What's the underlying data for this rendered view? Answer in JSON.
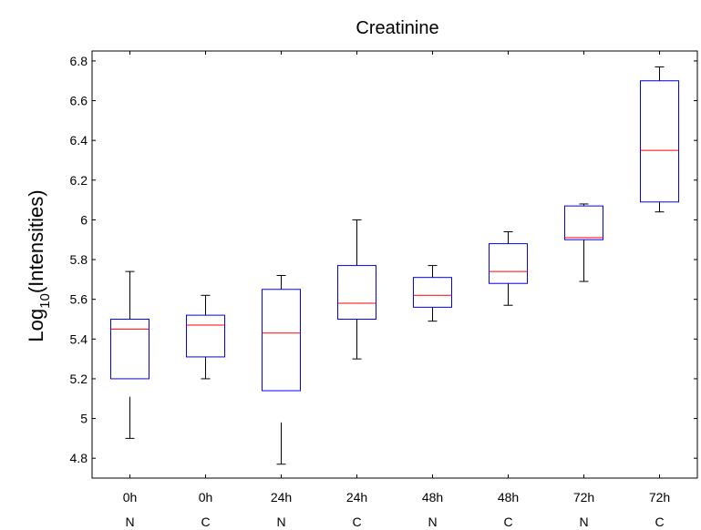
{
  "chart_data": {
    "type": "box",
    "title": "Creatinine",
    "ylabel": {
      "base": "Log",
      "subscript": "10",
      "rest": "(Intensities)"
    },
    "xlabel": "",
    "ylim": [
      4.7,
      6.85
    ],
    "yticks": [
      4.8,
      5,
      5.2,
      5.4,
      5.6,
      5.8,
      6,
      6.2,
      6.4,
      6.6,
      6.8
    ],
    "ytick_labels": [
      "4.8",
      "5",
      "5.2",
      "5.4",
      "5.6",
      "5.8",
      "6",
      "6.2",
      "6.4",
      "6.6",
      "6.8"
    ],
    "grid": false,
    "colors": {
      "box": "#0000ff",
      "median": "#ff0000",
      "whisker": "#000000"
    },
    "categories": [
      {
        "line1": "0h",
        "line2": "N"
      },
      {
        "line1": "0h",
        "line2": "C"
      },
      {
        "line1": "24h",
        "line2": "N"
      },
      {
        "line1": "24h",
        "line2": "C"
      },
      {
        "line1": "48h",
        "line2": "N"
      },
      {
        "line1": "48h",
        "line2": "C"
      },
      {
        "line1": "72h",
        "line2": "N"
      },
      {
        "line1": "72h",
        "line2": "C"
      }
    ],
    "boxes": [
      {
        "min": 4.9,
        "q1": 5.2,
        "median": 5.45,
        "q3": 5.5,
        "max": 5.74,
        "lower_whisker_top": 5.11
      },
      {
        "min": 5.2,
        "q1": 5.31,
        "median": 5.47,
        "q3": 5.52,
        "max": 5.62
      },
      {
        "min": 4.77,
        "q1": 5.14,
        "median": 5.43,
        "q3": 5.65,
        "max": 5.72,
        "lower_whisker_top": 4.98
      },
      {
        "min": 5.3,
        "q1": 5.5,
        "median": 5.58,
        "q3": 5.77,
        "max": 6.0
      },
      {
        "min": 5.49,
        "q1": 5.56,
        "median": 5.62,
        "q3": 5.71,
        "max": 5.77
      },
      {
        "min": 5.57,
        "q1": 5.68,
        "median": 5.74,
        "q3": 5.88,
        "max": 5.94
      },
      {
        "min": 5.69,
        "q1": 5.9,
        "median": 5.91,
        "q3": 6.07,
        "max": 6.08
      },
      {
        "min": 6.04,
        "q1": 6.09,
        "median": 6.35,
        "q3": 6.7,
        "max": 6.77
      }
    ]
  }
}
